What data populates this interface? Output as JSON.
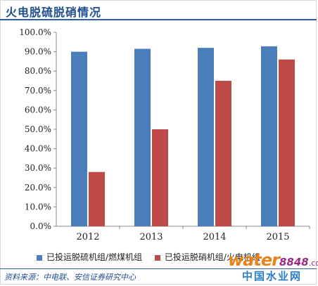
{
  "header": {
    "title": "火电脱硫脱硝情况"
  },
  "colors": {
    "desulfur": "#4a7ebb",
    "denitrify": "#be4b48",
    "title": "#1f4e8c"
  },
  "chart_data": {
    "type": "bar",
    "categories": [
      "2012",
      "2013",
      "2014",
      "2015"
    ],
    "series": [
      {
        "name": "已投运脱硫机组/燃煤机组",
        "values": [
          90.0,
          91.5,
          92.0,
          92.8
        ]
      },
      {
        "name": "已投运脱硝机组/火电机组",
        "values": [
          28.0,
          50.0,
          75.0,
          86.0
        ]
      }
    ],
    "ylim": [
      0,
      100
    ],
    "yticks": [
      "0.0%",
      "10.0%",
      "20.0%",
      "30.0%",
      "40.0%",
      "50.0%",
      "60.0%",
      "70.0%",
      "80.0%",
      "90.0%",
      "100.0%"
    ],
    "grid": false,
    "legend": "bottom"
  },
  "footer": {
    "source": "资料来源：中电联、安信证券研究中心"
  },
  "watermark": {
    "brand_word": "water",
    "brand_number": "8848",
    "domain": ".com",
    "chinese": "中国水业网"
  }
}
